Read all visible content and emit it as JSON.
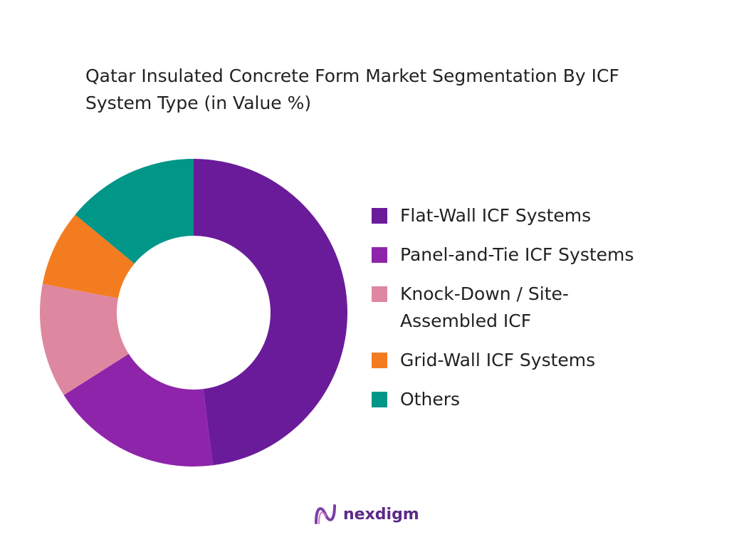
{
  "chart_data": {
    "type": "donut",
    "title": "Qatar Insulated Concrete Form Market Segmentation By ICF System Type (in Value %)",
    "categories": [
      "Flat-Wall ICF Systems",
      "Panel-and-Tie ICF Systems",
      "Knock-Down / Site-Assembled ICF",
      "Grid-Wall ICF Systems",
      "Others"
    ],
    "values": [
      48,
      18,
      12,
      8,
      14
    ],
    "colors": [
      "#6a1b9a",
      "#8e24aa",
      "#de87a0",
      "#f47c20",
      "#009688"
    ]
  },
  "brand": "nexdigm"
}
